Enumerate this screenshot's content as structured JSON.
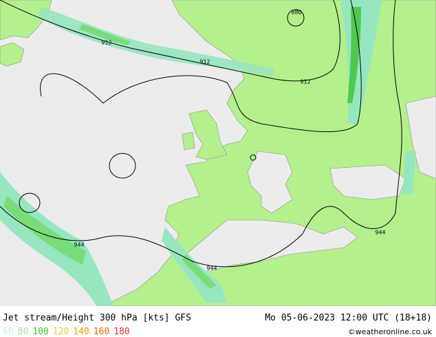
{
  "header": {
    "title": "Jet stream/Height 300 hPa [kts] GFS",
    "datetime": "Mo 05-06-2023 12:00 UTC (18+18)"
  },
  "legend": [
    {
      "label": "60",
      "color": "#c8f0c8"
    },
    {
      "label": "80",
      "color": "#96e696"
    },
    {
      "label": "100",
      "color": "#32c832"
    },
    {
      "label": "120",
      "color": "#e6c832"
    },
    {
      "label": "140",
      "color": "#f0a000"
    },
    {
      "label": "160",
      "color": "#f06400"
    },
    {
      "label": "180",
      "color": "#e63232"
    }
  ],
  "contour_labels": [
    "880",
    "912",
    "912",
    "912",
    "944",
    "944",
    "944"
  ],
  "copyright": "©weatheronline.co.uk"
}
